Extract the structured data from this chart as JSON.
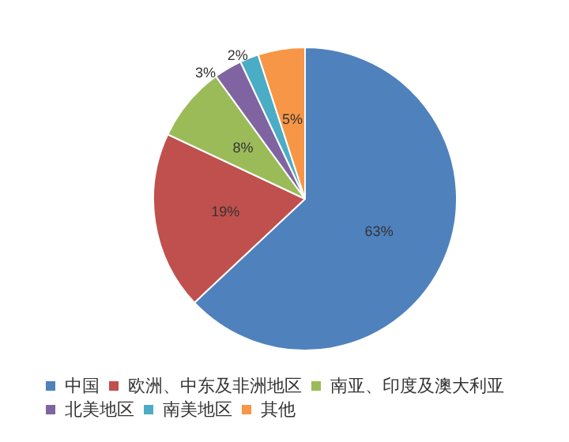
{
  "chart_data": {
    "type": "pie",
    "categories": [
      "中国",
      "欧洲、中东及非洲地区",
      "南亚、印度及澳大利亚",
      "北美地区",
      "南美地区",
      "其他"
    ],
    "values": [
      63,
      19,
      8,
      3,
      2,
      5
    ],
    "colors": [
      "#4f81bd",
      "#c0504d",
      "#9bbb59",
      "#8064a2",
      "#4bacc6",
      "#f79646"
    ],
    "value_labels": [
      "63%",
      "19%",
      "8%",
      "3%",
      "2%",
      "5%"
    ],
    "legend": "bottom"
  }
}
